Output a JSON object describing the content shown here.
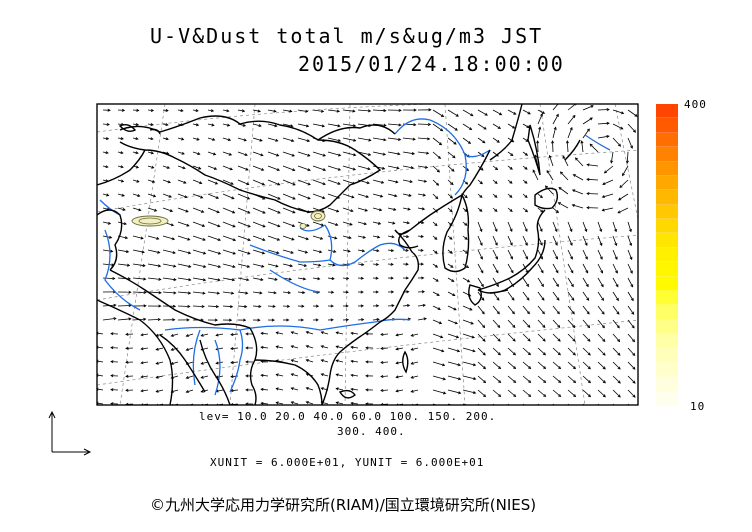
{
  "title_line1": "U-V&Dust total m/s&ug/m3 JST",
  "title_line2": "2015/01/24.18:00:00",
  "colorbar": {
    "max_label": "400",
    "min_label": "10",
    "colors": [
      "#ff4500",
      "#ff5a00",
      "#ff6e00",
      "#ff8200",
      "#ff9600",
      "#ffa800",
      "#ffb800",
      "#ffc800",
      "#ffd800",
      "#ffe600",
      "#fff000",
      "#fff600",
      "#fffa00",
      "#ffff33",
      "#ffff66",
      "#ffff88",
      "#ffffa5",
      "#ffffbb",
      "#ffffcc",
      "#ffffdd",
      "#ffffee"
    ]
  },
  "levels_line1": "lev= 10.0 20.0 40.0 60.0 100. 150. 200.",
  "levels_line2": "300. 400.",
  "unit_line": "XUNIT = 6.000E+01, YUNIT = 6.000E+01",
  "copyright": "©九州大学応用力学研究所(RIAM)/国立環境研究所(NIES)",
  "colors": {
    "coast": "#000000",
    "river": "#1e6ee6",
    "dust_fill": "#f3efc0",
    "dust_line": "#6a6a3a"
  }
}
